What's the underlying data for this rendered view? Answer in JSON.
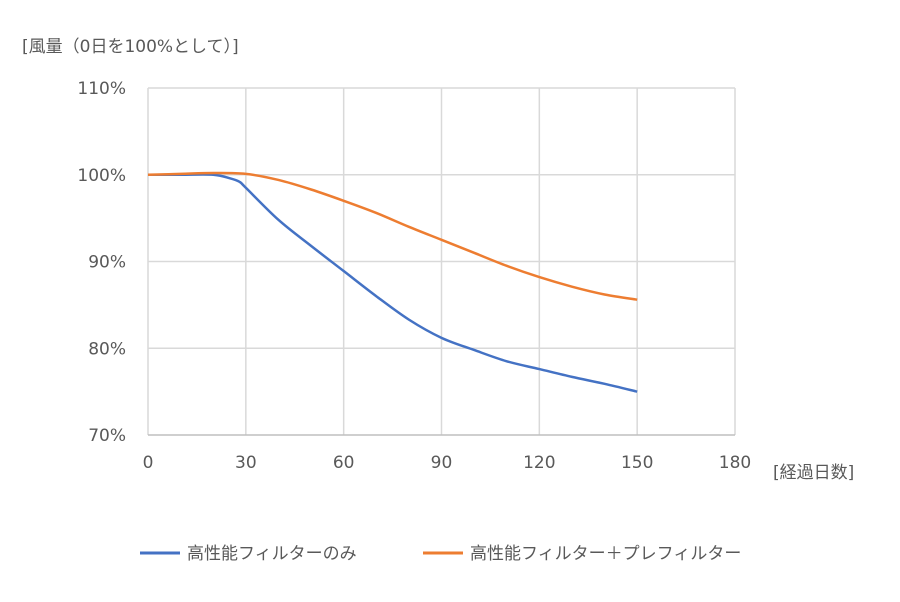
{
  "chart_data": {
    "type": "line",
    "ylabel": "[風量（0日を100%として）]",
    "xlabel": "[経過日数]",
    "xlim": [
      0,
      180
    ],
    "ylim": [
      70,
      110
    ],
    "x_ticks": [
      "0",
      "30",
      "60",
      "90",
      "120",
      "150",
      "180"
    ],
    "y_ticks": [
      "70%",
      "80%",
      "90%",
      "100%",
      "110%"
    ],
    "grid": true,
    "legend_position": "bottom",
    "series": [
      {
        "name": "高性能フィルターのみ",
        "color": "#4472C4",
        "x": [
          0,
          10,
          20,
          25,
          28,
          30,
          40,
          50,
          60,
          70,
          80,
          90,
          100,
          110,
          120,
          130,
          140,
          150
        ],
        "values": [
          100,
          100,
          100,
          99.6,
          99.2,
          98.5,
          94.8,
          91.8,
          88.9,
          86.0,
          83.3,
          81.2,
          79.8,
          78.5,
          77.6,
          76.7,
          75.9,
          75.0
        ]
      },
      {
        "name": "高性能フィルター＋プレフィルター",
        "color": "#ED7D31",
        "x": [
          0,
          10,
          20,
          30,
          40,
          50,
          60,
          70,
          80,
          90,
          100,
          110,
          120,
          130,
          140,
          150
        ],
        "values": [
          100,
          100.1,
          100.2,
          100.1,
          99.4,
          98.3,
          97.0,
          95.6,
          94.0,
          92.5,
          91.0,
          89.5,
          88.2,
          87.1,
          86.2,
          85.6
        ]
      }
    ]
  }
}
